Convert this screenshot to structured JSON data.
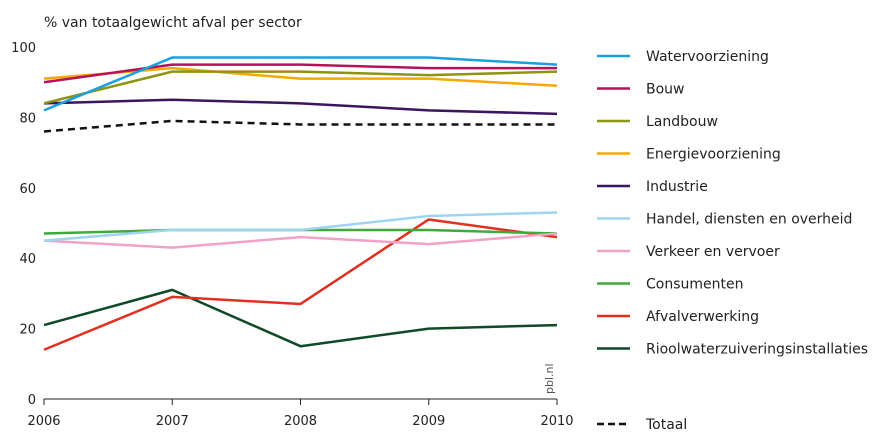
{
  "chart_data": {
    "type": "line",
    "ylabel": "% van totaalgewicht afval per sector",
    "x": [
      2006,
      2007,
      2008,
      2009,
      2010
    ],
    "xtick_labels": [
      "2006",
      "2007",
      "2008",
      "2009",
      "2010"
    ],
    "ylim": [
      0,
      100
    ],
    "ytick_labels": [
      "0",
      "20",
      "40",
      "60",
      "80",
      "100"
    ],
    "grid": false,
    "legend_position": "right",
    "watermark": "pbl.nl",
    "series": [
      {
        "name": "Watervoorziening",
        "color": "#1a9fe0",
        "dashed": false,
        "values": [
          82,
          97,
          97,
          97,
          95
        ]
      },
      {
        "name": "Bouw",
        "color": "#b5125c",
        "dashed": false,
        "values": [
          90,
          95,
          95,
          94,
          94
        ]
      },
      {
        "name": "Landbouw",
        "color": "#8c9410",
        "dashed": false,
        "values": [
          84,
          93,
          93,
          92,
          93
        ]
      },
      {
        "name": "Energievoorziening",
        "color": "#f7a800",
        "dashed": false,
        "values": [
          91,
          94,
          91,
          91,
          89
        ]
      },
      {
        "name": "Industrie",
        "color": "#3b1560",
        "dashed": false,
        "values": [
          84,
          85,
          84,
          82,
          81
        ]
      },
      {
        "name": "Handel, diensten en overheid",
        "color": "#9fd4f0",
        "dashed": false,
        "values": [
          45,
          48,
          48,
          52,
          53
        ]
      },
      {
        "name": "Verkeer en vervoer",
        "color": "#f0a2c8",
        "dashed": false,
        "values": [
          45,
          43,
          46,
          44,
          47
        ]
      },
      {
        "name": "Consumenten",
        "color": "#3faa3a",
        "dashed": false,
        "values": [
          47,
          48,
          48,
          48,
          47
        ]
      },
      {
        "name": "Afvalverwerking",
        "color": "#e03020",
        "dashed": false,
        "values": [
          14,
          29,
          27,
          51,
          46
        ]
      },
      {
        "name": "Rioolwaterzuiveringsinstallaties",
        "color": "#0f4a26",
        "dashed": false,
        "values": [
          21,
          31,
          15,
          20,
          21
        ]
      },
      {
        "name": "Totaal",
        "color": "#111111",
        "dashed": true,
        "values": [
          76,
          79,
          78,
          78,
          78
        ]
      }
    ]
  }
}
